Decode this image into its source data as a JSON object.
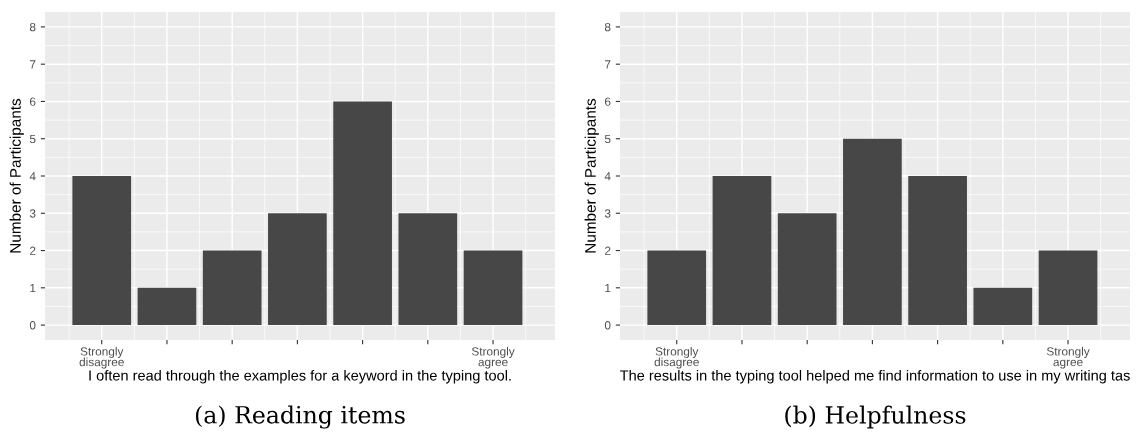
{
  "chart_data": [
    {
      "type": "bar",
      "xlabel": "I often read through the examples for a keyword in the typing tool.",
      "ylabel": "Number of Participants",
      "categories": [
        "Strongly\ndisagree",
        null,
        null,
        null,
        null,
        null,
        "Strongly\nagree"
      ],
      "values": [
        4,
        1,
        2,
        3,
        6,
        3,
        2
      ],
      "color": "#474747",
      "ylim": [
        -0.4,
        8.4
      ],
      "yticks": [
        0,
        1,
        2,
        3,
        4,
        5,
        6,
        7,
        8
      ],
      "grid": true,
      "annotations": [
        "(a) Reading items"
      ]
    },
    {
      "type": "bar",
      "xlabel": "The results in the typing tool helped me find information to use in my writing tas",
      "ylabel": "Number of Participants",
      "categories": [
        "Strongly\ndisagree",
        null,
        null,
        null,
        null,
        null,
        "Strongly\nagree"
      ],
      "values": [
        2,
        4,
        3,
        5,
        4,
        1,
        2
      ],
      "color": "#474747",
      "ylim": [
        -0.4,
        8.4
      ],
      "yticks": [
        0,
        1,
        2,
        3,
        4,
        5,
        6,
        7,
        8
      ],
      "grid": true,
      "annotations": [
        "(b) Helpfulness"
      ]
    }
  ]
}
